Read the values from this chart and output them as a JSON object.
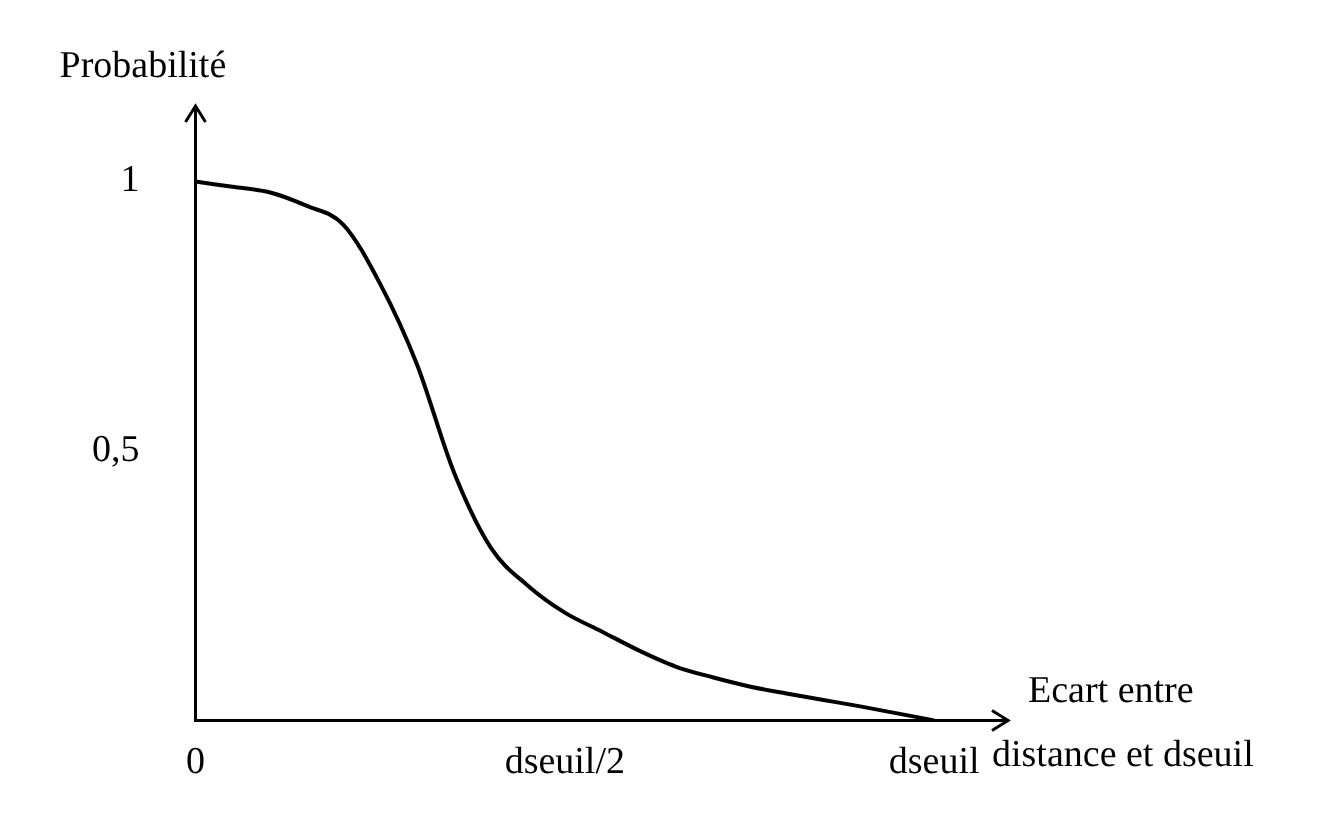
{
  "chart_data": {
    "type": "line",
    "xlabel": "Ecart entre distance et dseuil",
    "ylabel": "Probabilité",
    "categories": [
      "0",
      null,
      null,
      null,
      null,
      null,
      null,
      null,
      null,
      null,
      "dseuil/2",
      null,
      null,
      null,
      null,
      null,
      null,
      null,
      null,
      null,
      "dseuil",
      null,
      null
    ],
    "series": [
      {
        "color": "#000000",
        "values": [
          1,
          0.99,
          0.98,
          0.955,
          0.92,
          0.81,
          0.66,
          0.46,
          0.32,
          0.25,
          0.2,
          0.165,
          0.13,
          0.1,
          0.08,
          0.063,
          0.05,
          0.038,
          0.026,
          0.013,
          0,
          null,
          null
        ]
      }
    ],
    "ylim": [
      0,
      1.14
    ],
    "yticks": [
      {
        "value": 0.5,
        "label": "0,5"
      },
      1
    ],
    "grid": false,
    "legend": false,
    "marker": "none",
    "line_style": "solid"
  }
}
